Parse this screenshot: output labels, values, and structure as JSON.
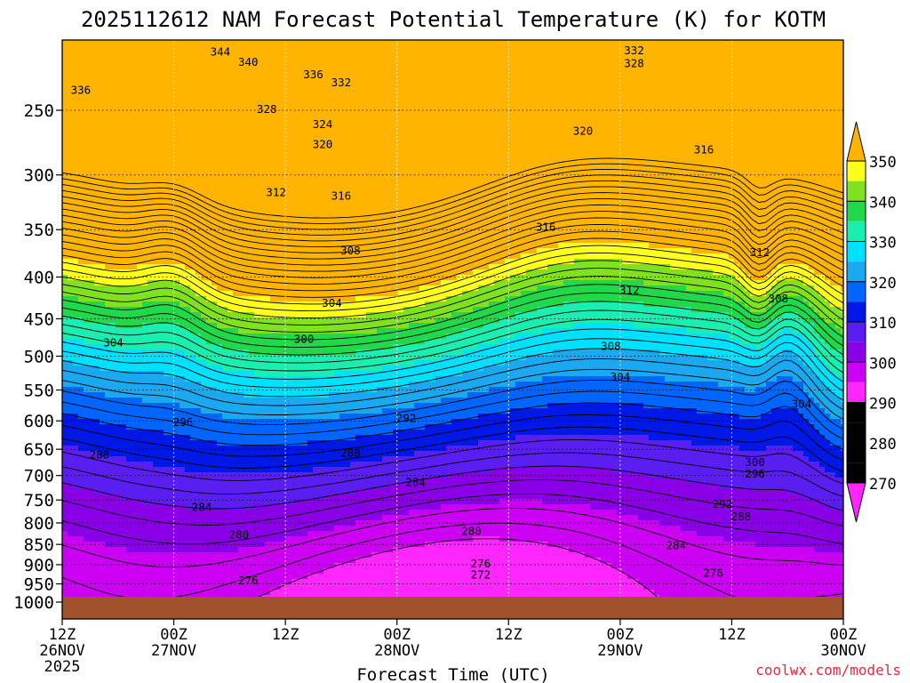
{
  "chart_data": {
    "type": "contour",
    "title": "2025112612 NAM Forecast Potential Temperature (K) for KOTM",
    "xlabel": "Forecast Time (UTC)",
    "ylabel": "",
    "credit": "coolwx.com/models",
    "x_ticks": [
      {
        "hours": 0,
        "label": "12Z",
        "line2": "26NOV",
        "line3": "2025"
      },
      {
        "hours": 12,
        "label": "00Z",
        "line2": "27NOV",
        "line3": ""
      },
      {
        "hours": 24,
        "label": "12Z",
        "line2": "",
        "line3": ""
      },
      {
        "hours": 36,
        "label": "00Z",
        "line2": "28NOV",
        "line3": ""
      },
      {
        "hours": 48,
        "label": "12Z",
        "line2": "",
        "line3": ""
      },
      {
        "hours": 60,
        "label": "00Z",
        "line2": "29NOV",
        "line3": ""
      },
      {
        "hours": 72,
        "label": "12Z",
        "line2": "",
        "line3": ""
      },
      {
        "hours": 84,
        "label": "00Z",
        "line2": "30NOV",
        "line3": ""
      }
    ],
    "xlim_hours": [
      0,
      84
    ],
    "y_pressure_levels": [
      250,
      300,
      350,
      400,
      450,
      500,
      550,
      600,
      650,
      700,
      750,
      800,
      850,
      900,
      950,
      1000
    ],
    "ylim_hpa": [
      200,
      1000
    ],
    "y_scale": "log",
    "colorbar": {
      "levels": [
        270,
        280,
        290,
        300,
        310,
        320,
        330,
        340,
        350
      ],
      "colors": [
        "#ff26ff",
        "#cc00f2",
        "#8a00e6",
        "#5a1ef0",
        "#0018e6",
        "#0066ff",
        "#1aa8f0",
        "#00e0ff",
        "#1aeeb0",
        "#20d84a",
        "#80e21e",
        "#ffff1e",
        "#ffb400"
      ]
    },
    "ground_color": "#a0522d",
    "contour_interval": 2,
    "contour_labels": [
      {
        "v": 344,
        "t": 17,
        "p": 212
      },
      {
        "v": 340,
        "t": 20,
        "p": 218
      },
      {
        "v": 336,
        "t": 27,
        "p": 226
      },
      {
        "v": 332,
        "t": 30,
        "p": 231
      },
      {
        "v": 336,
        "t": 2,
        "p": 236
      },
      {
        "v": 332,
        "t": 61.5,
        "p": 211
      },
      {
        "v": 328,
        "t": 61.5,
        "p": 219
      },
      {
        "v": 328,
        "t": 22,
        "p": 249
      },
      {
        "v": 324,
        "t": 28,
        "p": 260
      },
      {
        "v": 320,
        "t": 28,
        "p": 275
      },
      {
        "v": 320,
        "t": 56,
        "p": 265
      },
      {
        "v": 316,
        "t": 69,
        "p": 279
      },
      {
        "v": 312,
        "t": 23,
        "p": 315
      },
      {
        "v": 316,
        "t": 30,
        "p": 318
      },
      {
        "v": 316,
        "t": 52,
        "p": 347
      },
      {
        "v": 312,
        "t": 75,
        "p": 373
      },
      {
        "v": 308,
        "t": 31,
        "p": 371
      },
      {
        "v": 312,
        "t": 61,
        "p": 415
      },
      {
        "v": 308,
        "t": 77,
        "p": 425
      },
      {
        "v": 304,
        "t": 29,
        "p": 430
      },
      {
        "v": 304,
        "t": 5.5,
        "p": 481
      },
      {
        "v": 300,
        "t": 26,
        "p": 476
      },
      {
        "v": 308,
        "t": 59,
        "p": 486
      },
      {
        "v": 304,
        "t": 60,
        "p": 530
      },
      {
        "v": 304,
        "t": 79.5,
        "p": 572
      },
      {
        "v": 296,
        "t": 13,
        "p": 602
      },
      {
        "v": 292,
        "t": 37,
        "p": 595
      },
      {
        "v": 288,
        "t": 4,
        "p": 660
      },
      {
        "v": 288,
        "t": 31,
        "p": 656
      },
      {
        "v": 300,
        "t": 74.5,
        "p": 674
      },
      {
        "v": 296,
        "t": 74.5,
        "p": 696
      },
      {
        "v": 284,
        "t": 38,
        "p": 713
      },
      {
        "v": 292,
        "t": 71,
        "p": 758
      },
      {
        "v": 284,
        "t": 15,
        "p": 765
      },
      {
        "v": 288,
        "t": 73,
        "p": 785
      },
      {
        "v": 280,
        "t": 19,
        "p": 827
      },
      {
        "v": 280,
        "t": 44,
        "p": 818
      },
      {
        "v": 284,
        "t": 66,
        "p": 852
      },
      {
        "v": 276,
        "t": 45,
        "p": 897
      },
      {
        "v": 272,
        "t": 45,
        "p": 925
      },
      {
        "v": 276,
        "t": 20,
        "p": 941
      },
      {
        "v": 276,
        "t": 70,
        "p": 921
      }
    ]
  }
}
